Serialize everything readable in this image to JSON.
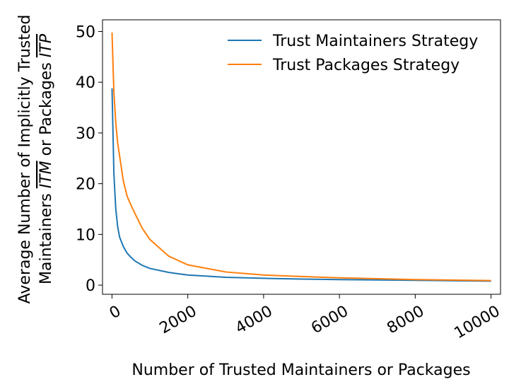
{
  "chart_data": {
    "type": "line",
    "xlabel": "Number of Trusted Maintainers or Packages",
    "ylabel_line1": "Average Number of Implicitly Trusted",
    "ylabel_line2_prefix": "Maintainers ",
    "ylabel_itm": "ITM",
    "ylabel_line2_mid": " or Packages ",
    "ylabel_itp": "ITP",
    "xlim": [
      -250,
      10250
    ],
    "ylim": [
      -1.8,
      52.3
    ],
    "xticks": [
      0,
      2000,
      4000,
      6000,
      8000,
      10000
    ],
    "xtick_labels": [
      "0",
      "2000",
      "4000",
      "6000",
      "8000",
      "10000"
    ],
    "yticks": [
      0,
      10,
      20,
      30,
      40,
      50
    ],
    "ytick_labels": [
      "0",
      "10",
      "20",
      "30",
      "40",
      "50"
    ],
    "grid": false,
    "legend_position": "top-right",
    "series": [
      {
        "name": "Trust Maintainers Strategy",
        "color": "#1f77b4",
        "x": [
          1,
          50,
          100,
          150,
          200,
          300,
          400,
          500,
          600,
          800,
          1000,
          1500,
          2000,
          3000,
          4000,
          5000,
          6000,
          8000,
          10000
        ],
        "y": [
          38.8,
          22,
          15,
          11.5,
          9.5,
          7.6,
          6.3,
          5.5,
          4.8,
          3.9,
          3.3,
          2.5,
          2.0,
          1.55,
          1.35,
          1.2,
          1.1,
          0.95,
          0.8
        ]
      },
      {
        "name": "Trust Packages Strategy",
        "color": "#ff7f0e",
        "x": [
          1,
          50,
          100,
          150,
          200,
          300,
          400,
          500,
          600,
          800,
          1000,
          1500,
          2000,
          3000,
          4000,
          5000,
          6000,
          8000,
          10000
        ],
        "y": [
          49.8,
          38,
          32,
          28,
          25.5,
          20.5,
          17.5,
          15.8,
          14.2,
          11.2,
          9.0,
          5.7,
          4.0,
          2.6,
          2.0,
          1.7,
          1.45,
          1.1,
          0.9
        ]
      }
    ]
  }
}
